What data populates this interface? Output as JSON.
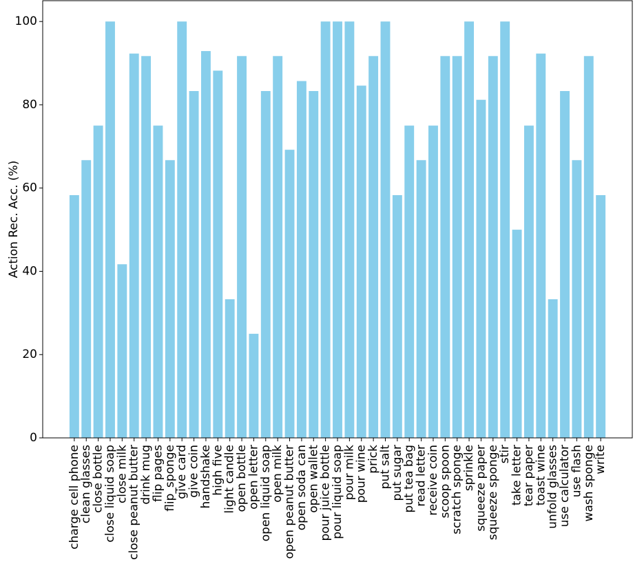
{
  "chart_data": {
    "type": "bar",
    "y_label": "Action Rec. Acc. (%)",
    "categories": [
      "charge cell phone",
      "clean glasses",
      "close bottle",
      "close liquid soap",
      "close milk",
      "close peanut butter",
      "drink mug",
      "flip pages",
      "flip_sponge",
      "give card",
      "give coin",
      "handshake",
      "high five",
      "light candle",
      "open bottle",
      "open letter",
      "open liquid soap",
      "open milk",
      "open peanut butter",
      "open soda can",
      "open wallet",
      "pour juice bottle",
      "pour liquid soap",
      "pour milk",
      "pour wine",
      "prick",
      "put salt",
      "put sugar",
      "put tea bag",
      "read letter",
      "receive coin",
      "scoop spoon",
      "scratch sponge",
      "sprinkle",
      "squeeze paper",
      "squeeze sponge",
      "stir",
      "take letter",
      "tear paper",
      "toast wine",
      "unfold glasses",
      "use calculator",
      "use flash",
      "wash sponge",
      "write"
    ],
    "values": [
      58.3,
      66.7,
      75,
      100,
      41.7,
      92.3,
      91.7,
      75,
      66.7,
      100,
      83.3,
      92.9,
      88.2,
      33.3,
      91.7,
      25,
      83.3,
      91.7,
      69.2,
      85.7,
      83.3,
      100,
      100,
      100,
      84.6,
      91.7,
      100,
      58.3,
      75,
      66.7,
      75,
      91.7,
      91.7,
      100,
      81.2,
      91.7,
      100,
      50,
      75,
      92.3,
      33.3,
      83.3,
      66.7,
      91.7,
      58.3
    ],
    "color": "#87ceeb",
    "ylim": [
      0,
      105
    ],
    "yticks": [
      0,
      20,
      40,
      60,
      80,
      100
    ],
    "grid": false
  }
}
